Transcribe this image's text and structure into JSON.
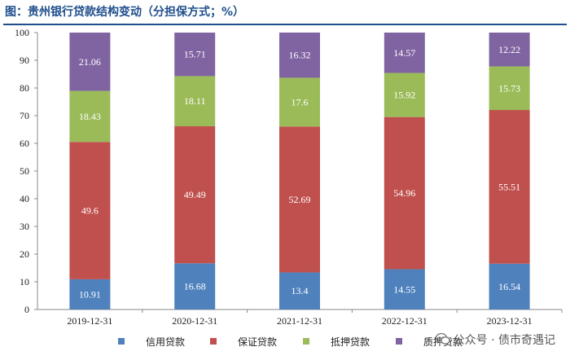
{
  "title": "图：贵州银行贷款结构变动（分担保方式；%）",
  "watermark": "公众号 · 债市奇遇记",
  "chart_data": {
    "type": "bar",
    "stacked": true,
    "categories": [
      "2019-12-31",
      "2020-12-31",
      "2021-12-31",
      "2022-12-31",
      "2023-12-31"
    ],
    "ylim": [
      0,
      100
    ],
    "yticks": [
      0,
      10,
      20,
      30,
      40,
      50,
      60,
      70,
      80,
      90,
      100
    ],
    "grid": false,
    "legend_position": "bottom",
    "series": [
      {
        "name": "信用贷款",
        "color": "#4f81bd",
        "values": [
          10.91,
          16.68,
          13.4,
          14.55,
          16.54
        ]
      },
      {
        "name": "保证贷款",
        "color": "#c0504d",
        "values": [
          49.6,
          49.49,
          52.69,
          54.96,
          55.51
        ]
      },
      {
        "name": "抵押贷款",
        "color": "#9bbb59",
        "values": [
          18.43,
          18.11,
          17.6,
          15.92,
          15.73
        ]
      },
      {
        "name": "质押贷款",
        "color": "#8064a2",
        "values": [
          21.06,
          15.71,
          16.32,
          14.57,
          12.22
        ]
      }
    ]
  }
}
